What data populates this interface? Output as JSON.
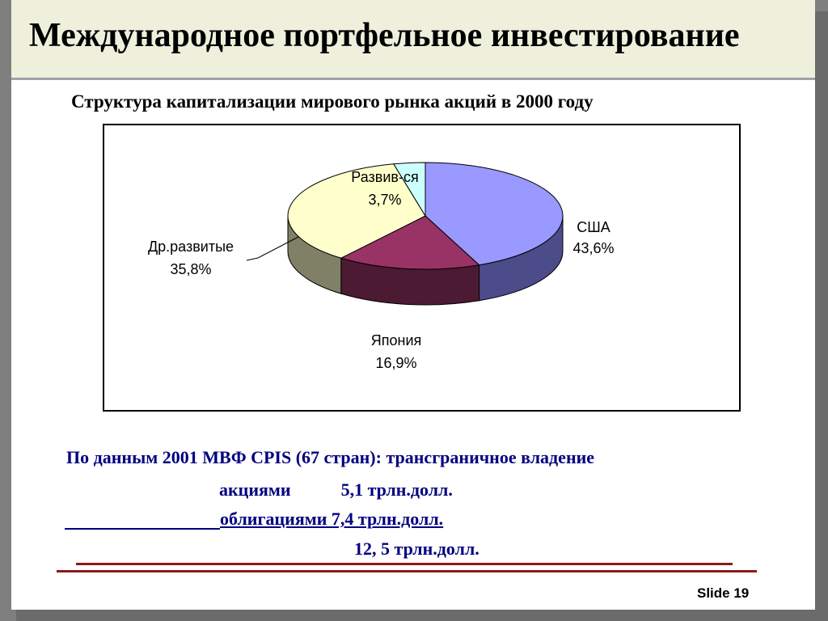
{
  "header": {
    "title": "Международное портфельное инвестирование"
  },
  "subtitle": "Структура капитализации мирового рынка акций в 2000 году",
  "chart_data": {
    "type": "pie",
    "slices": [
      {
        "name": "США",
        "label": "США",
        "value": 43.6,
        "value_label": "43,6%",
        "color": "#9999ff",
        "side_color": "#4c4c8a",
        "label_anchor": "right"
      },
      {
        "name": "Япония",
        "label": "Япония",
        "value": 16.9,
        "value_label": "16,9%",
        "color": "#993366",
        "side_color": "#4d1a33",
        "label_anchor": "bottom"
      },
      {
        "name": "Др.развитые",
        "label": "Др.развитые",
        "value": 35.8,
        "value_label": "35,8%",
        "color": "#ffffcc",
        "side_color": "#808066",
        "label_anchor": "left"
      },
      {
        "name": "Развив-ся",
        "label": "Развив-ся",
        "value": 3.7,
        "value_label": "3,7%",
        "color": "#ccffff",
        "side_color": "#668080",
        "label_anchor": "top"
      }
    ],
    "style": "3d"
  },
  "info": {
    "line1": "По данным 2001 МВФ CPIS (67 стран):  трансграничное владение",
    "stocks_label": "акциями",
    "stocks_value": "5,1 трлн.долл.",
    "bonds": "облигациями 7,4 трлн.долл.",
    "total": "12, 5 трлн.долл."
  },
  "footer": {
    "slide_number": "Slide 19"
  }
}
